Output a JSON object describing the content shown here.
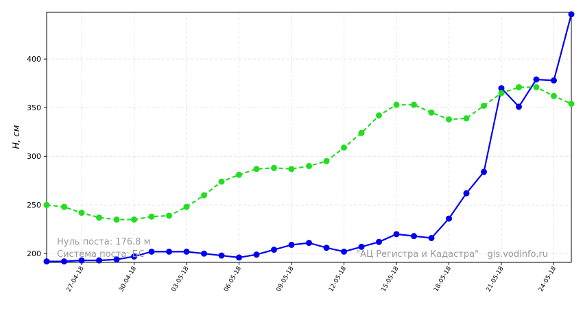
{
  "chart_data": {
    "type": "line",
    "ylabel": "H, см",
    "annotations": [
      "Нуль поста: 176.8 м",
      "Система поста: БС",
      "\"АЦ Регистра и Кадастра\"   gis.vodinfo.ru"
    ],
    "categories": [
      null,
      null,
      "27-04-18",
      null,
      null,
      "30-04-18",
      null,
      null,
      "03-05-18",
      null,
      null,
      "06-05-18",
      null,
      null,
      "09-05-18",
      null,
      null,
      "12-05-18",
      null,
      null,
      "15-05-18",
      null,
      null,
      "18-05-18",
      null,
      null,
      "21-05-18",
      null,
      null,
      "24-05-18",
      null
    ],
    "series": [
      {
        "color": "#0000ee",
        "dashed": false,
        "values": [
          192,
          192,
          193,
          193,
          194,
          197,
          202,
          202,
          202,
          200,
          198,
          196,
          199,
          204,
          209,
          211,
          206,
          202,
          207,
          212,
          220,
          218,
          216,
          236,
          262,
          284,
          370,
          351,
          379,
          378,
          446
        ]
      },
      {
        "color": "#22dd22",
        "dashed": true,
        "values": [
          250,
          248,
          242,
          237,
          235,
          235,
          238,
          239,
          248,
          260,
          274,
          281,
          287,
          288,
          287,
          290,
          295,
          309,
          324,
          342,
          353,
          353,
          345,
          338,
          339,
          352,
          365,
          371,
          371,
          362,
          354
        ]
      }
    ],
    "ylim": [
      191,
      448
    ],
    "yticks": [
      200,
      250,
      300,
      350,
      400
    ],
    "grid": true
  }
}
